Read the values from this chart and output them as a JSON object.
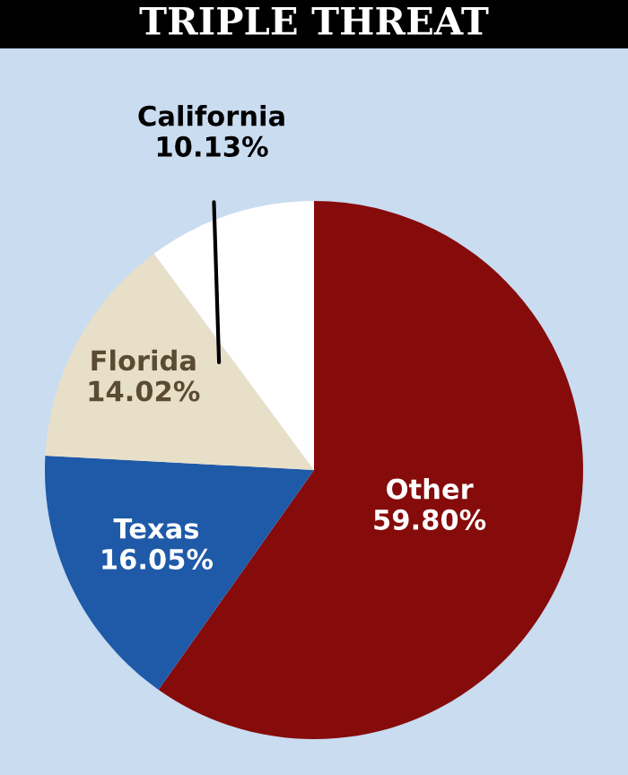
{
  "chart_data": {
    "type": "pie",
    "title": "TRIPLE THREAT",
    "categories": [
      "Other",
      "Texas",
      "Florida",
      "California"
    ],
    "values": [
      59.8,
      16.05,
      14.02,
      10.13
    ],
    "value_labels": [
      "59.80%",
      "16.05%",
      "14.02%",
      "10.13%"
    ],
    "colors": [
      "#860b0b",
      "#1f5aa8",
      "#e8dfc9",
      "#ffffff"
    ]
  }
}
